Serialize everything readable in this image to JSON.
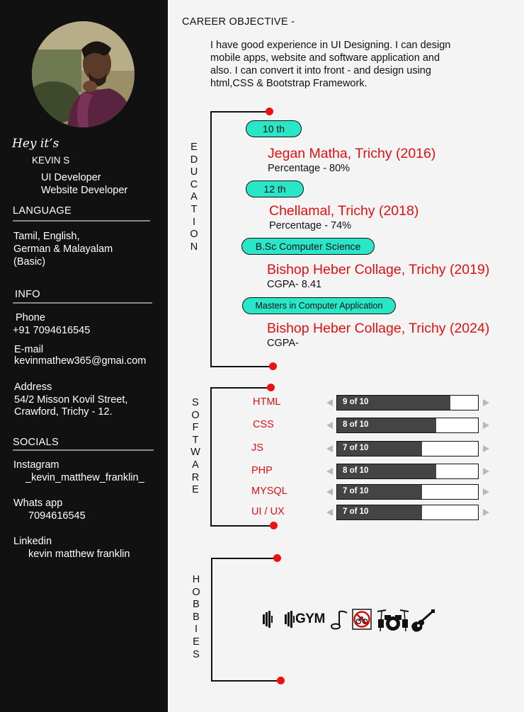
{
  "sidebar": {
    "avatar": "profile-photo",
    "greeting": "Hey it’s",
    "name": "KEVIN S",
    "roles": [
      "UI Developer",
      "Website Developer"
    ],
    "language": {
      "title": "LANGUAGE",
      "lines": [
        "Tamil, English,",
        "German & Malayalam",
        "(Basic)"
      ]
    },
    "info": {
      "title": "INFO",
      "phone_label": "Phone",
      "phone": "+91 7094616545",
      "email_label": "E-mail",
      "email": "kevinmathew365@gmai.com",
      "address_label": "Address",
      "address_lines": [
        "54/2 Misson Kovil Street,",
        "Crawford, Trichy - 12."
      ]
    },
    "socials": {
      "title": "SOCIALS",
      "instagram_label": "Instagram",
      "instagram": "_kevin_matthew_franklin_",
      "whatsapp_label": "Whats app",
      "whatsapp": "7094616545",
      "linkedin_label": "Linkedin",
      "linkedin": "kevin matthew franklin"
    }
  },
  "objective": {
    "title": "CAREER OBJECTIVE -",
    "lines": [
      "I have good experience in UI Designing. I can design",
      "mobile apps, website and software application and",
      "also. I can convert it into front - and design using",
      "html,CSS & Bootstrap Framework."
    ]
  },
  "education": {
    "title": "EDUCATION",
    "items": [
      {
        "level": "10 th",
        "institution": "Jegan Matha, Trichy (2016)",
        "score": "Percentage - 80%"
      },
      {
        "level": "12 th",
        "institution": "Chellamal, Trichy (2018)",
        "score": "Percentage - 74%"
      },
      {
        "level": "B.Sc Computer Science",
        "institution": "Bishop Heber Collage, Trichy (2019)",
        "score": "CGPA- 8.41"
      },
      {
        "level": "Masters in Computer Application",
        "institution": "Bishop Heber Collage, Trichy (2024)",
        "score": "CGPA-"
      }
    ]
  },
  "software": {
    "title": "SOFTWARE",
    "skills": [
      {
        "name": "HTML",
        "label": "9 of 10",
        "value": 9,
        "max": 10
      },
      {
        "name": "CSS",
        "label": "8 of 10",
        "value": 8,
        "max": 10
      },
      {
        "name": "JS",
        "label": "7 of 10",
        "value": 7,
        "max": 10
      },
      {
        "name": "PHP",
        "label": "8 of 10",
        "value": 8,
        "max": 10
      },
      {
        "name": "MYSQL",
        "label": "7 of 10",
        "value": 7,
        "max": 10
      },
      {
        "name": "UI / UX",
        "label": "7 of 10",
        "value": 7,
        "max": 10
      }
    ]
  },
  "hobbies": {
    "title": "HOBBIES",
    "gym_text": "GYM",
    "icons": [
      "dumbbell-icon",
      "gym-icon",
      "music-note-icon",
      "no-cycling-icon",
      "drum-kit-icon",
      "guitar-icon"
    ]
  },
  "colors": {
    "sidebar_bg": "#111111",
    "accent_red": "#e01010",
    "pill_teal": "#2ae6c8",
    "bar_fill": "#444444"
  }
}
